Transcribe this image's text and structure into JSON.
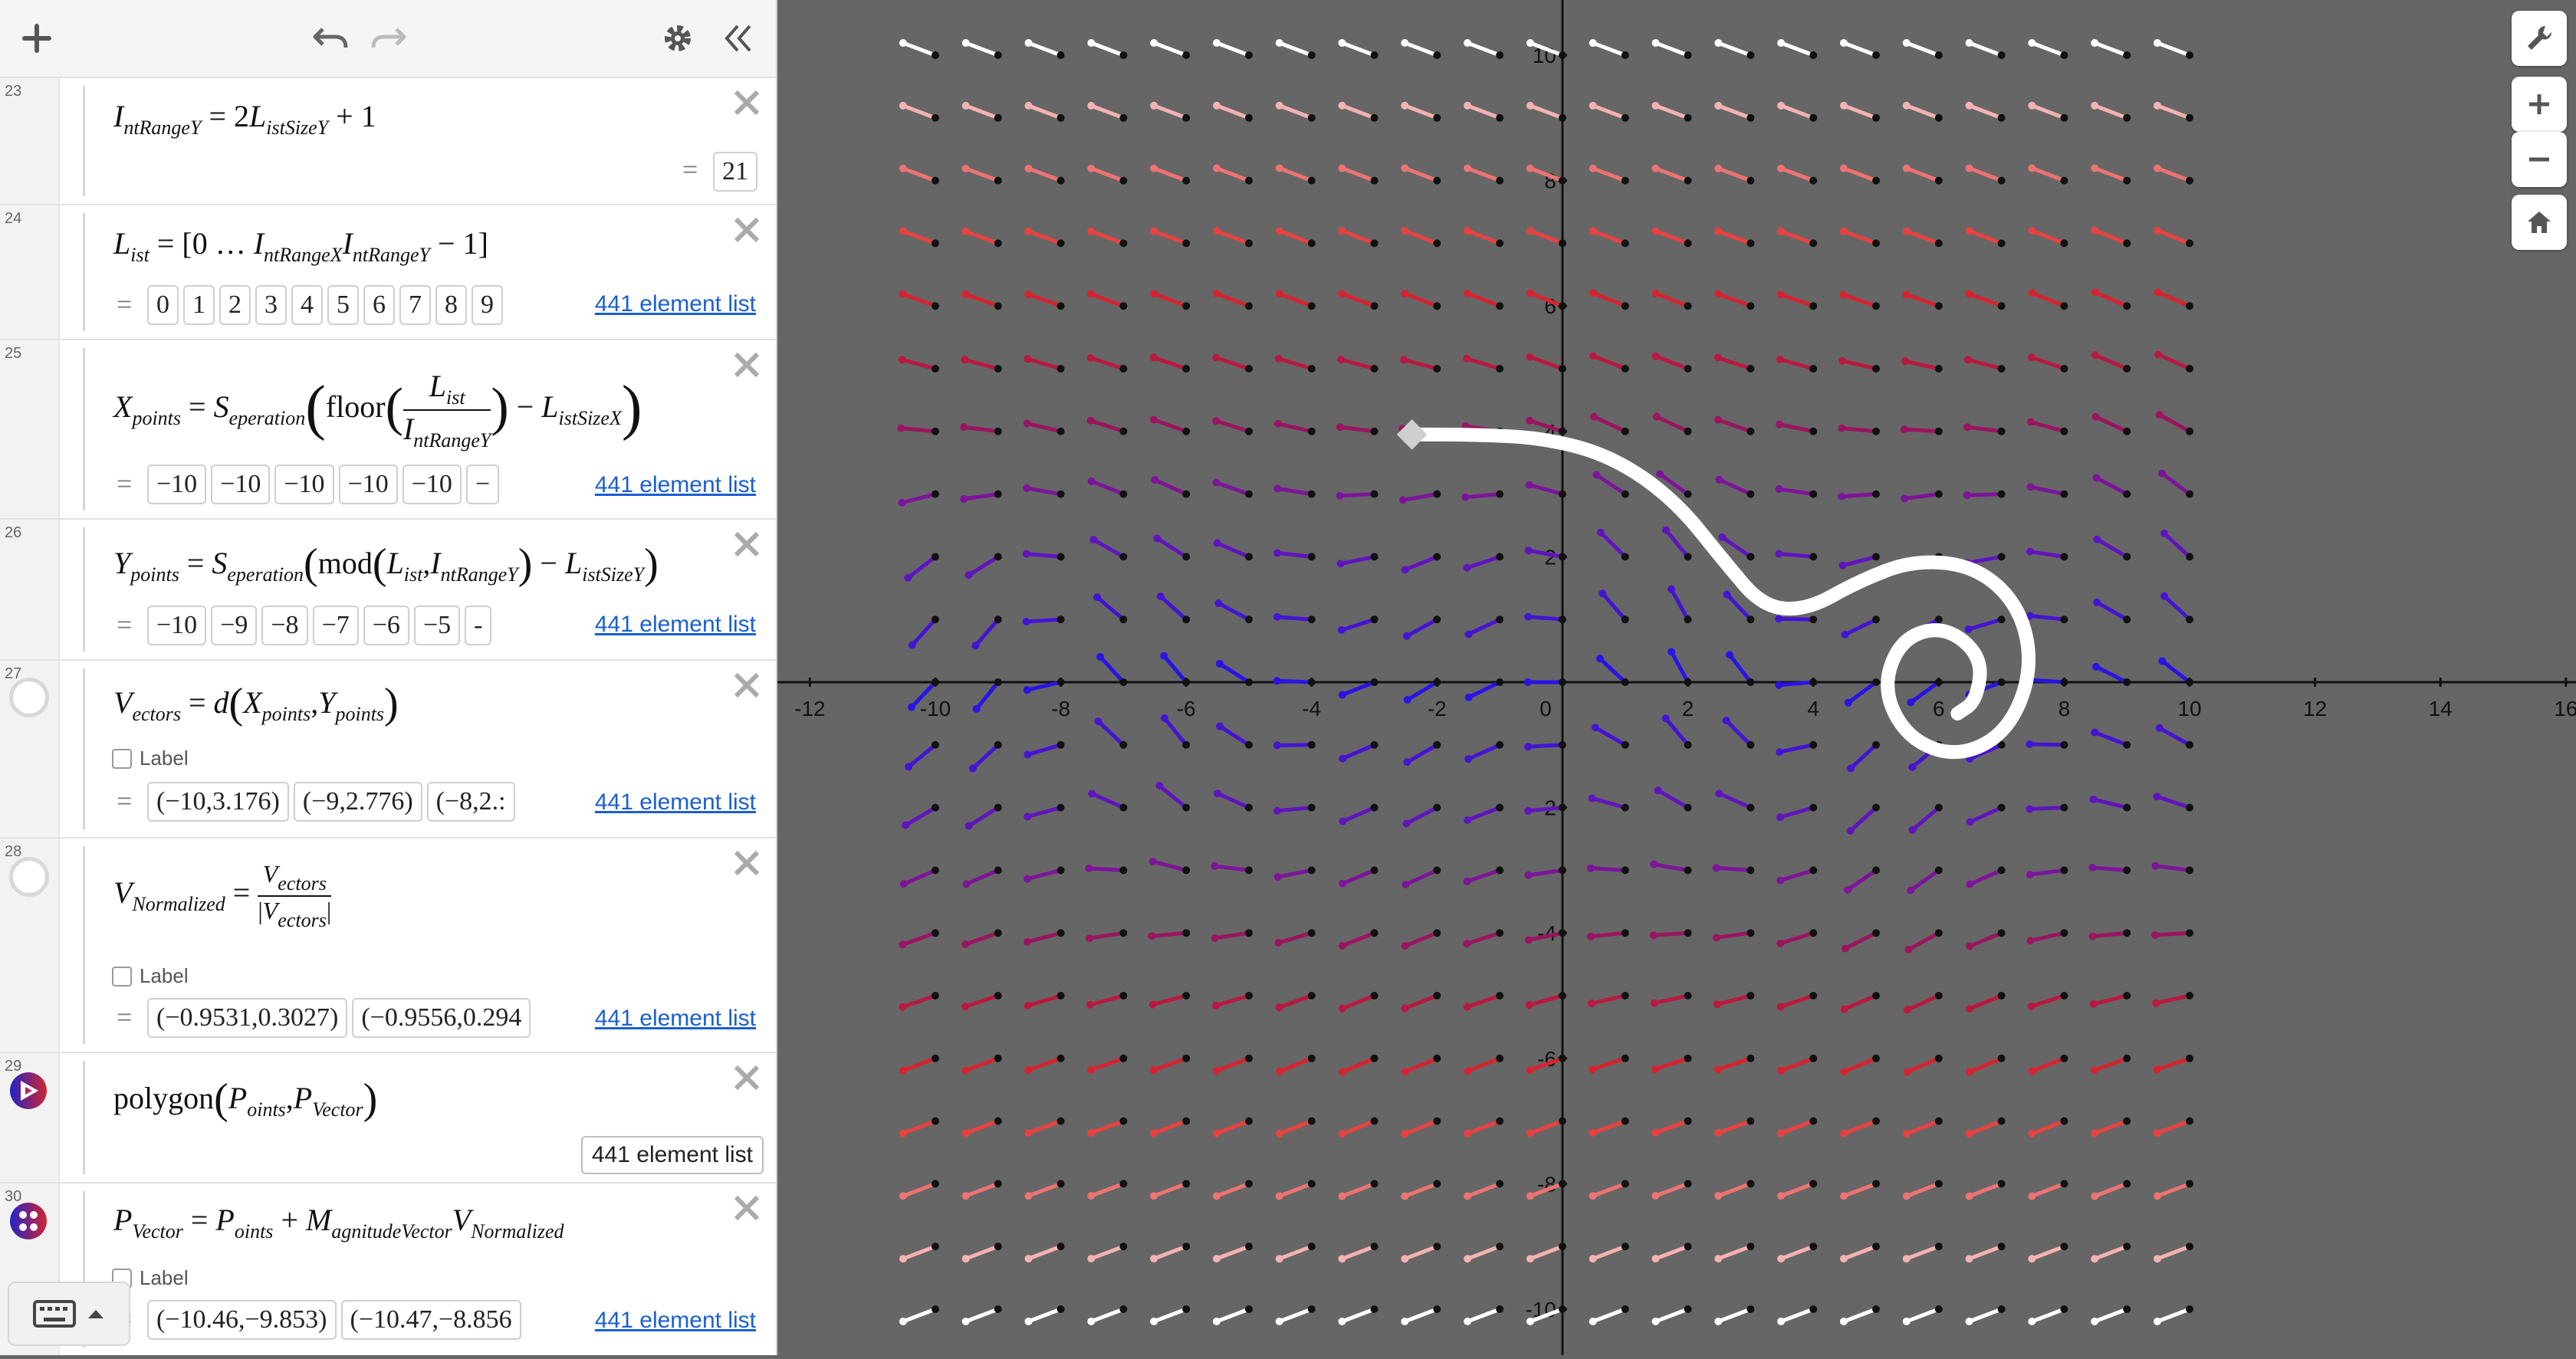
{
  "toolbar": {
    "add_icon": "plus-icon",
    "undo_icon": "undo-icon",
    "redo_icon": "redo-icon",
    "settings_icon": "gear-icon",
    "collapse_icon": "double-chevron-left-icon"
  },
  "rows": {
    "r23": {
      "num": "23",
      "result": "21"
    },
    "r24": {
      "num": "24",
      "values": [
        "0",
        "1",
        "2",
        "3",
        "4",
        "5",
        "6",
        "7",
        "8",
        "9"
      ],
      "link": "441 element list"
    },
    "r25": {
      "num": "25",
      "values": [
        "−10",
        "−10",
        "−10",
        "−10",
        "−10",
        "−"
      ],
      "link": "441 element list"
    },
    "r26": {
      "num": "26",
      "values": [
        "−10",
        "−9",
        "−8",
        "−7",
        "−6",
        "−5",
        "-"
      ],
      "link": "441 element list"
    },
    "r27": {
      "num": "27",
      "label": "Label",
      "values": [
        "(−10,3.176)",
        "(−9,2.776)",
        "(−8,2.:"
      ],
      "link": "441 element list"
    },
    "r28": {
      "num": "28",
      "label": "Label",
      "values": [
        "(−0.9531,0.3027)",
        "(−0.9556,0.294"
      ],
      "link": "441 element list"
    },
    "r29": {
      "num": "29",
      "result": "441 element list"
    },
    "r30": {
      "num": "30",
      "label": "Label",
      "values": [
        "(−10.46,−9.853)",
        "(−10.47,−8.856"
      ],
      "link": "441 element list"
    }
  },
  "graph": {
    "x_ticks": [
      "-12",
      "-10",
      "-8",
      "-6",
      "-4",
      "-2",
      "0",
      "2",
      "4",
      "6",
      "8",
      "10",
      "12",
      "14",
      "16"
    ],
    "y_ticks": [
      "10",
      "8",
      "6",
      "4",
      "2",
      "-2",
      "-4",
      "-6",
      "-8",
      "-10"
    ],
    "buttons": [
      "wrench-icon",
      "zoom-in-icon",
      "zoom-out-icon",
      "home-icon"
    ]
  },
  "colors": {
    "background": "#666666",
    "curve": "#ffffff",
    "link": "#1a5fd0"
  }
}
